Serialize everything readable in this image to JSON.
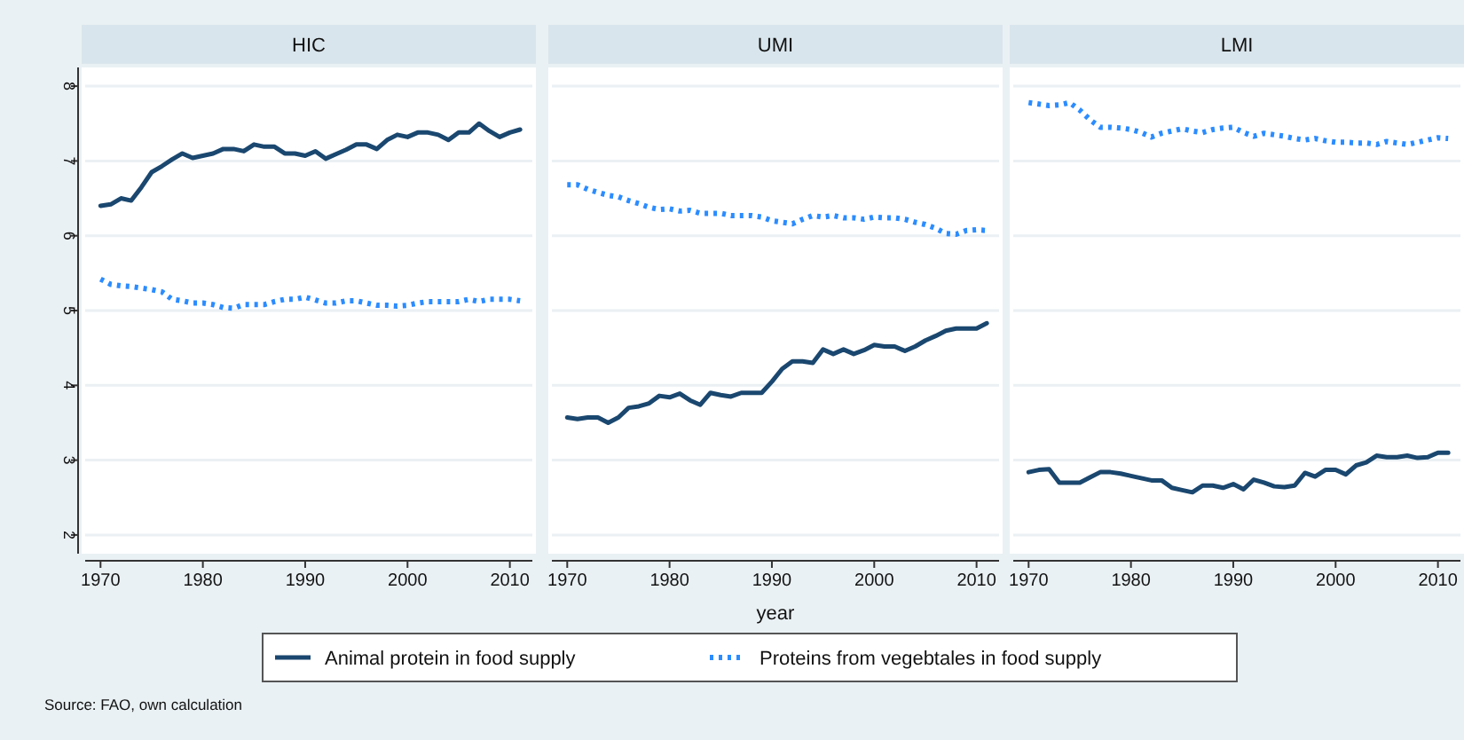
{
  "chart_data": [
    {
      "type": "line",
      "title": "HIC",
      "xlim": [
        1968.5,
        2012.2
      ],
      "ylim": [
        1.75,
        8.25
      ],
      "xticks": [
        1970,
        1980,
        1990,
        2000,
        2010
      ],
      "yticks": [
        2,
        3,
        4,
        5,
        6,
        7,
        8
      ],
      "grid": "y",
      "legend": "bottom",
      "annotations": [
        "Source: FAO, own calculation"
      ],
      "x": [
        1970,
        1971,
        1972,
        1973,
        1974,
        1975,
        1976,
        1977,
        1978,
        1979,
        1980,
        1981,
        1982,
        1983,
        1984,
        1985,
        1986,
        1987,
        1988,
        1989,
        1990,
        1991,
        1992,
        1993,
        1994,
        1995,
        1996,
        1997,
        1998,
        1999,
        2000,
        2001,
        2002,
        2003,
        2004,
        2005,
        2006,
        2007,
        2008,
        2009,
        2010,
        2011
      ],
      "series": [
        {
          "name": "Animal protein in food supply",
          "color": "#1a476f",
          "line_style": "solid",
          "values": [
            6.4,
            6.42,
            6.5,
            6.47,
            6.65,
            6.85,
            6.93,
            7.02,
            7.1,
            7.04,
            7.07,
            7.1,
            7.16,
            7.16,
            7.13,
            7.22,
            7.19,
            7.19,
            7.1,
            7.1,
            7.07,
            7.13,
            7.03,
            7.09,
            7.15,
            7.22,
            7.22,
            7.16,
            7.28,
            7.35,
            7.32,
            7.38,
            7.38,
            7.35,
            7.28,
            7.38,
            7.38,
            7.5,
            7.4,
            7.32,
            7.38,
            7.42
          ]
        },
        {
          "name": "Proteins from vegebtales in food supply",
          "color": "#2b8cff",
          "line_style": "dotted",
          "values": [
            5.42,
            5.35,
            5.33,
            5.32,
            5.3,
            5.28,
            5.25,
            5.15,
            5.13,
            5.1,
            5.1,
            5.08,
            5.04,
            5.03,
            5.08,
            5.08,
            5.08,
            5.12,
            5.15,
            5.15,
            5.18,
            5.14,
            5.1,
            5.1,
            5.13,
            5.13,
            5.1,
            5.07,
            5.07,
            5.06,
            5.07,
            5.1,
            5.12,
            5.12,
            5.12,
            5.12,
            5.15,
            5.12,
            5.15,
            5.15,
            5.15,
            5.13
          ]
        }
      ]
    },
    {
      "type": "line",
      "title": "UMI",
      "xlabel": "year",
      "xlim": [
        1968.5,
        2012.2
      ],
      "ylim": [
        1.75,
        8.25
      ],
      "xticks": [
        1970,
        1980,
        1990,
        2000,
        2010
      ],
      "yticks": [
        2,
        3,
        4,
        5,
        6,
        7,
        8
      ],
      "grid": "y",
      "tick_labels": "x",
      "x": [
        1970,
        1971,
        1972,
        1973,
        1974,
        1975,
        1976,
        1977,
        1978,
        1979,
        1980,
        1981,
        1982,
        1983,
        1984,
        1985,
        1986,
        1987,
        1988,
        1989,
        1990,
        1991,
        1992,
        1993,
        1994,
        1995,
        1996,
        1997,
        1998,
        1999,
        2000,
        2001,
        2002,
        2003,
        2004,
        2005,
        2006,
        2007,
        2008,
        2009,
        2010,
        2011
      ],
      "series": [
        {
          "color": "#1a476f",
          "line_style": "solid",
          "values": [
            3.57,
            3.55,
            3.57,
            3.57,
            3.5,
            3.57,
            3.7,
            3.72,
            3.76,
            3.86,
            3.84,
            3.89,
            3.8,
            3.74,
            3.9,
            3.87,
            3.85,
            3.9,
            3.9,
            3.9,
            4.05,
            4.22,
            4.32,
            4.32,
            4.3,
            4.48,
            4.42,
            4.48,
            4.42,
            4.47,
            4.54,
            4.52,
            4.52,
            4.46,
            4.52,
            4.6,
            4.66,
            4.73,
            4.76,
            4.76,
            4.76,
            4.83
          ]
        },
        {
          "color": "#2b8cff",
          "line_style": "dotted",
          "values": [
            6.68,
            6.68,
            6.62,
            6.58,
            6.54,
            6.52,
            6.47,
            6.43,
            6.38,
            6.35,
            6.36,
            6.33,
            6.34,
            6.3,
            6.3,
            6.3,
            6.27,
            6.27,
            6.27,
            6.25,
            6.2,
            6.18,
            6.16,
            6.22,
            6.27,
            6.25,
            6.27,
            6.24,
            6.24,
            6.22,
            6.25,
            6.24,
            6.24,
            6.22,
            6.18,
            6.15,
            6.1,
            6.03,
            6.02,
            6.07,
            6.08,
            6.07
          ]
        }
      ]
    },
    {
      "type": "line",
      "title": "LMI",
      "xlim": [
        1968.5,
        2012.2
      ],
      "ylim": [
        1.75,
        8.25
      ],
      "xticks": [
        1970,
        1980,
        1990,
        2000,
        2010
      ],
      "yticks": [
        2,
        3,
        4,
        5,
        6,
        7,
        8
      ],
      "grid": "y",
      "tick_labels": "x",
      "x": [
        1970,
        1971,
        1972,
        1973,
        1974,
        1975,
        1976,
        1977,
        1978,
        1979,
        1980,
        1981,
        1982,
        1983,
        1984,
        1985,
        1986,
        1987,
        1988,
        1989,
        1990,
        1991,
        1992,
        1993,
        1994,
        1995,
        1996,
        1997,
        1998,
        1999,
        2000,
        2001,
        2002,
        2003,
        2004,
        2005,
        2006,
        2007,
        2008,
        2009,
        2010,
        2011
      ],
      "series": [
        {
          "color": "#1a476f",
          "line_style": "solid",
          "values": [
            2.84,
            2.87,
            2.88,
            2.7,
            2.7,
            2.7,
            2.77,
            2.84,
            2.84,
            2.82,
            2.79,
            2.76,
            2.73,
            2.73,
            2.63,
            2.6,
            2.57,
            2.66,
            2.66,
            2.63,
            2.68,
            2.61,
            2.74,
            2.7,
            2.65,
            2.64,
            2.66,
            2.83,
            2.78,
            2.87,
            2.87,
            2.81,
            2.93,
            2.97,
            3.06,
            3.04,
            3.04,
            3.06,
            3.03,
            3.04,
            3.1,
            3.1
          ]
        },
        {
          "color": "#2b8cff",
          "line_style": "dotted",
          "values": [
            7.78,
            7.76,
            7.74,
            7.75,
            7.78,
            7.68,
            7.55,
            7.45,
            7.45,
            7.44,
            7.42,
            7.38,
            7.32,
            7.37,
            7.4,
            7.43,
            7.4,
            7.38,
            7.42,
            7.44,
            7.45,
            7.38,
            7.33,
            7.37,
            7.35,
            7.33,
            7.3,
            7.28,
            7.3,
            7.27,
            7.25,
            7.25,
            7.24,
            7.24,
            7.22,
            7.26,
            7.24,
            7.22,
            7.25,
            7.28,
            7.31,
            7.3
          ]
        }
      ]
    }
  ]
}
